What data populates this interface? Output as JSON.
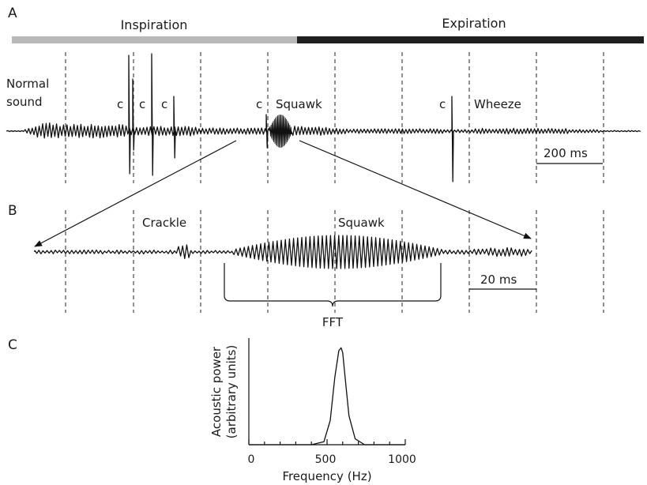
{
  "panels": {
    "a": "A",
    "b": "B",
    "c": "C"
  },
  "phases": {
    "inspiration": {
      "label": "Inspiration",
      "color": "#b9b9b9"
    },
    "expiration": {
      "label": "Expiration",
      "color": "#1f1f1f"
    }
  },
  "panel_a": {
    "normal_sound_line1": "Normal",
    "normal_sound_line2": "sound",
    "crackle_marks": [
      "c",
      "c",
      "c",
      "c",
      "c"
    ],
    "squawk": "Squawk",
    "wheeze": "Wheeze",
    "scale": "200 ms"
  },
  "panel_b": {
    "crackle": "Crackle",
    "squawk": "Squawk",
    "scale": "20 ms",
    "fft": "FFT"
  },
  "panel_c": {
    "ylabel_line1": "Acoustic power",
    "ylabel_line2": "(arbitrary units)",
    "xlabel": "Frequency (Hz)",
    "xticks": [
      "0",
      "500",
      "1000"
    ]
  },
  "chart_data": {
    "type": "line",
    "x": [
      0,
      400,
      480,
      520,
      550,
      575,
      590,
      600,
      615,
      640,
      680,
      740,
      1000
    ],
    "y": [
      0,
      0,
      0.03,
      0.25,
      0.7,
      0.97,
      1.0,
      0.95,
      0.7,
      0.3,
      0.06,
      0,
      0
    ],
    "xlabel": "Frequency (Hz)",
    "ylabel": "Acoustic power (arbitrary units)",
    "xlim": [
      0,
      1000
    ],
    "xticks": [
      0,
      500,
      1000
    ],
    "ylim": [
      0,
      1.1
    ],
    "grid": false
  }
}
